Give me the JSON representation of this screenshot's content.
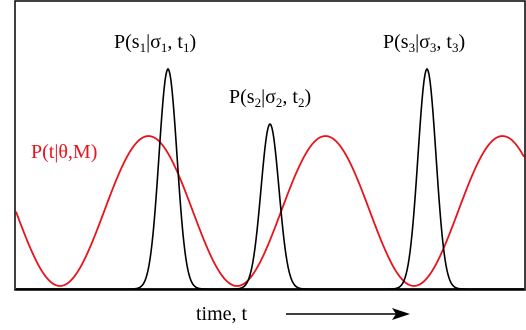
{
  "colors": {
    "frame": "#000000",
    "prior_curve": "#e8141b",
    "likelihood_peaks": "#000000",
    "prior_label": "#e8141b"
  },
  "labels": {
    "peak1": {
      "base": "P(s",
      "sub1": "1",
      "mid": "|σ",
      "sub2": "1",
      "comma": ", t",
      "sub3": "1",
      "close": ")"
    },
    "peak2": {
      "base": "P(s",
      "sub1": "2",
      "mid": "|σ",
      "sub2": "2",
      "comma": ", t",
      "sub3": "2",
      "close": ")"
    },
    "peak3": {
      "base": "P(s",
      "sub1": "3",
      "mid": "|σ",
      "sub2": "3",
      "comma": ", t",
      "sub3": "3",
      "close": ")"
    },
    "prior": "P(t|θ,M)",
    "time_axis": "time, t"
  },
  "icons": {
    "arrow": "right-arrow-icon"
  }
}
